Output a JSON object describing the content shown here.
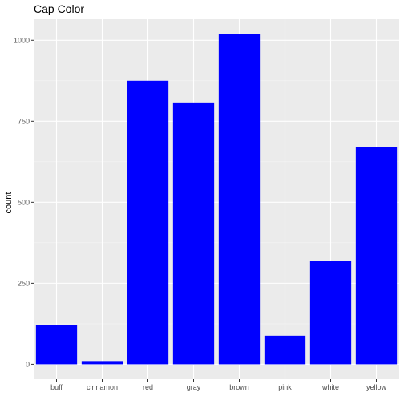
{
  "chart_data": {
    "type": "bar",
    "title": "Cap Color",
    "xlabel": "",
    "ylabel": "count",
    "categories": [
      "buff",
      "cinnamon",
      "red",
      "gray",
      "brown",
      "pink",
      "white",
      "yellow"
    ],
    "values": [
      120,
      10,
      875,
      808,
      1020,
      88,
      320,
      670
    ],
    "ylim": [
      -46,
      1065
    ],
    "yticks": [
      0,
      250,
      500,
      750,
      1000
    ],
    "ytick_labels": [
      "0",
      "250",
      "500",
      "750",
      "1000"
    ],
    "grid": true,
    "legend": "none",
    "colors": {
      "bar": "#0000ff",
      "panel": "#ebebeb",
      "grid_major": "#ffffff",
      "grid_minor": "#f5f5f5",
      "tick_text": "#4d4d4d"
    }
  }
}
